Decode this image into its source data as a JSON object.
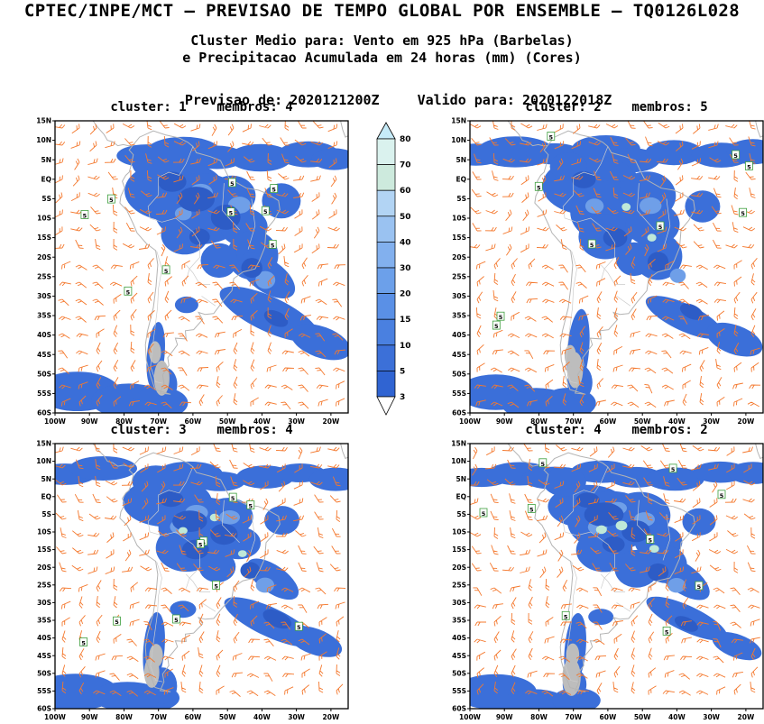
{
  "header": {
    "title": "CPTEC/INPE/MCT — PREVISAO DE TEMPO GLOBAL POR ENSEMBLE — TQ0126L028",
    "subtitle_line1": "Cluster Medio para: Vento em 925 hPa (Barbelas)",
    "subtitle_line2": "e Precipitacao Acumulada em 24 horas (mm) (Cores)",
    "forecast_from_label": "Previsao de:",
    "forecast_from_value": "2020121200Z",
    "valid_for_label": "Valido para:",
    "valid_for_value": "2020122018Z"
  },
  "panels": [
    {
      "title": "cluster: 1    membros: 4",
      "cluster": "1",
      "members": "4",
      "seed": 7
    },
    {
      "title": "cluster: 2    membros: 5",
      "cluster": "2",
      "members": "5",
      "seed": 23
    },
    {
      "title": "cluster: 3    membros: 4",
      "cluster": "3",
      "members": "4",
      "seed": 41
    },
    {
      "title": "cluster: 4    membros: 2",
      "cluster": "4",
      "members": "2",
      "seed": 59
    }
  ],
  "map": {
    "lat_labels": [
      "15N",
      "10N",
      "5N",
      "EQ",
      "5S",
      "10S",
      "15S",
      "20S",
      "25S",
      "30S",
      "35S",
      "40S",
      "45S",
      "50S",
      "55S",
      "60S"
    ],
    "lon_labels": [
      "100W",
      "90W",
      "80W",
      "70W",
      "60W",
      "50W",
      "40W",
      "30W",
      "20W"
    ],
    "lon_range": [
      -100,
      -15
    ],
    "lat_range": [
      15,
      -60
    ],
    "coast_color": "#b4b4b4",
    "border_color": "#cccccc",
    "barb_color": "#f4782d",
    "isotach_label": "5",
    "isotach_color": "#3d9e3d",
    "precip_base_color": "#3b6fd9",
    "precip_dark_color": "#2d5cc6",
    "precip_light_color": "#6f9fe8",
    "precip_pale_color": "#bfe8d8",
    "terrain_gray_color": "#bdbdbd"
  },
  "colorbar": {
    "levels_top_to_bottom": [
      "80",
      "70",
      "60",
      "50",
      "40",
      "30",
      "20",
      "15",
      "10",
      "5",
      "3"
    ],
    "segment_colors_top_to_bottom": [
      "#daf2ee",
      "#cdeadd",
      "#b2d4f4",
      "#9ac2f1",
      "#82b0ee",
      "#6ca0ea",
      "#5a90e6",
      "#4a80e0",
      "#3c70d8",
      "#3064d2"
    ],
    "arrow_top_color": "#c6ebf8",
    "arrow_bottom_color": "#ffffff"
  },
  "chart_data": {
    "type": "heatmap",
    "subtype": "ensemble-cluster-weather-maps",
    "title": "CPTEC/INPE/MCT — PREVISAO DE TEMPO GLOBAL POR ENSEMBLE — TQ0126L028",
    "variables": [
      "Vento em 925 hPa (Barbelas)",
      "Precipitacao Acumulada em 24 horas (mm) (Cores)"
    ],
    "init_time": "2020121200Z",
    "valid_time": "2020122018Z",
    "panels": [
      {
        "cluster": 1,
        "membros": 4
      },
      {
        "cluster": 2,
        "membros": 5
      },
      {
        "cluster": 3,
        "membros": 4
      },
      {
        "cluster": 4,
        "membros": 2
      }
    ],
    "colorbar_levels_mm": [
      3,
      5,
      10,
      15,
      20,
      30,
      40,
      50,
      60,
      70,
      80
    ],
    "x_axis_ticks": [
      "100W",
      "90W",
      "80W",
      "70W",
      "60W",
      "50W",
      "40W",
      "30W",
      "20W"
    ],
    "y_axis_ticks": [
      "15N",
      "10N",
      "5N",
      "EQ",
      "5S",
      "10S",
      "15S",
      "20S",
      "25S",
      "30S",
      "35S",
      "40S",
      "45S",
      "50S",
      "55S",
      "60S"
    ],
    "region": "South America",
    "legend_position": "center-between-top-panels",
    "grid": false
  }
}
